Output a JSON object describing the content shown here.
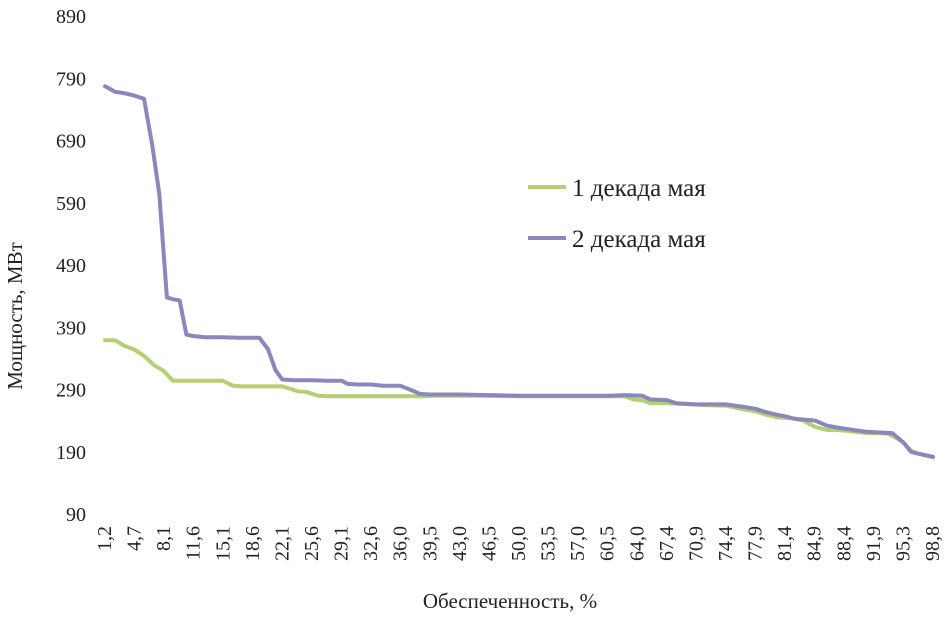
{
  "chart_data": {
    "type": "line",
    "title": "",
    "xlabel": "Обеспеченность, %",
    "ylabel": "Мощность, МВт",
    "ylim": [
      90,
      890
    ],
    "yticks": [
      "890",
      "790",
      "690",
      "590",
      "490",
      "390",
      "290",
      "190",
      "90"
    ],
    "xlim": [
      1.2,
      98.8
    ],
    "xticks": [
      "1,2",
      "4,7",
      "8,1",
      "11,6",
      "15,1",
      "18,6",
      "22,1",
      "25,6",
      "29,1",
      "32,6",
      "36,0",
      "39,5",
      "43,0",
      "46,5",
      "50,0",
      "53,5",
      "57,0",
      "60,5",
      "64,0",
      "67,4",
      "70,9",
      "74,4",
      "77,9",
      "81,4",
      "84,9",
      "88,4",
      "91,9",
      "95,3",
      "98,8"
    ],
    "grid": false,
    "legend_position": "center-right",
    "series": [
      {
        "name": "1 декада мая",
        "color": "#b5cf73",
        "points": [
          [
            1.2,
            369
          ],
          [
            2.4,
            369
          ],
          [
            3.5,
            360
          ],
          [
            4.7,
            354
          ],
          [
            5.8,
            344
          ],
          [
            7.0,
            329
          ],
          [
            8.1,
            320
          ],
          [
            9.2,
            304
          ],
          [
            10.4,
            304
          ],
          [
            11.6,
            304
          ],
          [
            13.0,
            304
          ],
          [
            15.1,
            304
          ],
          [
            16.3,
            296
          ],
          [
            17.4,
            295
          ],
          [
            18.6,
            295
          ],
          [
            20.0,
            295
          ],
          [
            22.1,
            295
          ],
          [
            24.0,
            287
          ],
          [
            25.0,
            286
          ],
          [
            26.3,
            280
          ],
          [
            27.4,
            279
          ],
          [
            29.1,
            279
          ],
          [
            31.0,
            279
          ],
          [
            33.0,
            279
          ],
          [
            36.0,
            279
          ],
          [
            38.5,
            279
          ],
          [
            40.0,
            280
          ],
          [
            45.0,
            280
          ],
          [
            50.0,
            279
          ],
          [
            55.0,
            279
          ],
          [
            60.0,
            279
          ],
          [
            62.5,
            279
          ],
          [
            63.5,
            274
          ],
          [
            64.5,
            273
          ],
          [
            65.5,
            268
          ],
          [
            67.4,
            268
          ],
          [
            69.0,
            267
          ],
          [
            72.0,
            265
          ],
          [
            74.4,
            264
          ],
          [
            76.5,
            258
          ],
          [
            77.9,
            255
          ],
          [
            79.0,
            250
          ],
          [
            80.5,
            245
          ],
          [
            82.0,
            244
          ],
          [
            83.5,
            240
          ],
          [
            84.9,
            230
          ],
          [
            86.3,
            225
          ],
          [
            87.5,
            225
          ],
          [
            88.4,
            224
          ],
          [
            91.0,
            220
          ],
          [
            92.5,
            220
          ],
          [
            93.5,
            219
          ],
          [
            94.5,
            212
          ],
          [
            95.3,
            205
          ],
          [
            96.2,
            192
          ],
          [
            97.0,
            187
          ],
          [
            98.8,
            181
          ]
        ]
      },
      {
        "name": "2 декада мая",
        "color": "#8988bc",
        "points": [
          [
            1.2,
            777
          ],
          [
            2.4,
            768
          ],
          [
            3.5,
            766
          ],
          [
            4.7,
            762
          ],
          [
            5.8,
            757
          ],
          [
            6.8,
            680
          ],
          [
            7.6,
            604
          ],
          [
            8.5,
            438
          ],
          [
            9.2,
            435
          ],
          [
            10.0,
            433
          ],
          [
            10.8,
            378
          ],
          [
            11.6,
            376
          ],
          [
            13.0,
            374
          ],
          [
            15.1,
            374
          ],
          [
            17.0,
            373
          ],
          [
            18.6,
            373
          ],
          [
            19.4,
            373
          ],
          [
            20.4,
            355
          ],
          [
            21.3,
            321
          ],
          [
            22.1,
            306
          ],
          [
            23.5,
            305
          ],
          [
            25.6,
            305
          ],
          [
            27.4,
            304
          ],
          [
            29.1,
            304
          ],
          [
            29.8,
            299
          ],
          [
            31.0,
            298
          ],
          [
            32.6,
            298
          ],
          [
            34.0,
            296
          ],
          [
            36.0,
            296
          ],
          [
            37.5,
            288
          ],
          [
            38.3,
            283
          ],
          [
            39.5,
            282
          ],
          [
            43.0,
            282
          ],
          [
            46.5,
            281
          ],
          [
            50.0,
            280
          ],
          [
            53.5,
            280
          ],
          [
            57.0,
            280
          ],
          [
            60.5,
            280
          ],
          [
            62.5,
            281
          ],
          [
            64.5,
            280
          ],
          [
            65.5,
            274
          ],
          [
            67.4,
            273
          ],
          [
            68.5,
            268
          ],
          [
            70.9,
            266
          ],
          [
            74.4,
            266
          ],
          [
            75.5,
            264
          ],
          [
            76.5,
            262
          ],
          [
            77.9,
            259
          ],
          [
            79.0,
            254
          ],
          [
            80.5,
            249
          ],
          [
            81.4,
            247
          ],
          [
            82.5,
            243
          ],
          [
            84.9,
            240
          ],
          [
            86.3,
            232
          ],
          [
            87.5,
            229
          ],
          [
            88.4,
            227
          ],
          [
            91.0,
            222
          ],
          [
            92.5,
            221
          ],
          [
            94.0,
            220
          ],
          [
            95.3,
            205
          ],
          [
            96.2,
            190
          ],
          [
            97.0,
            187
          ],
          [
            98.8,
            182
          ]
        ]
      }
    ]
  }
}
